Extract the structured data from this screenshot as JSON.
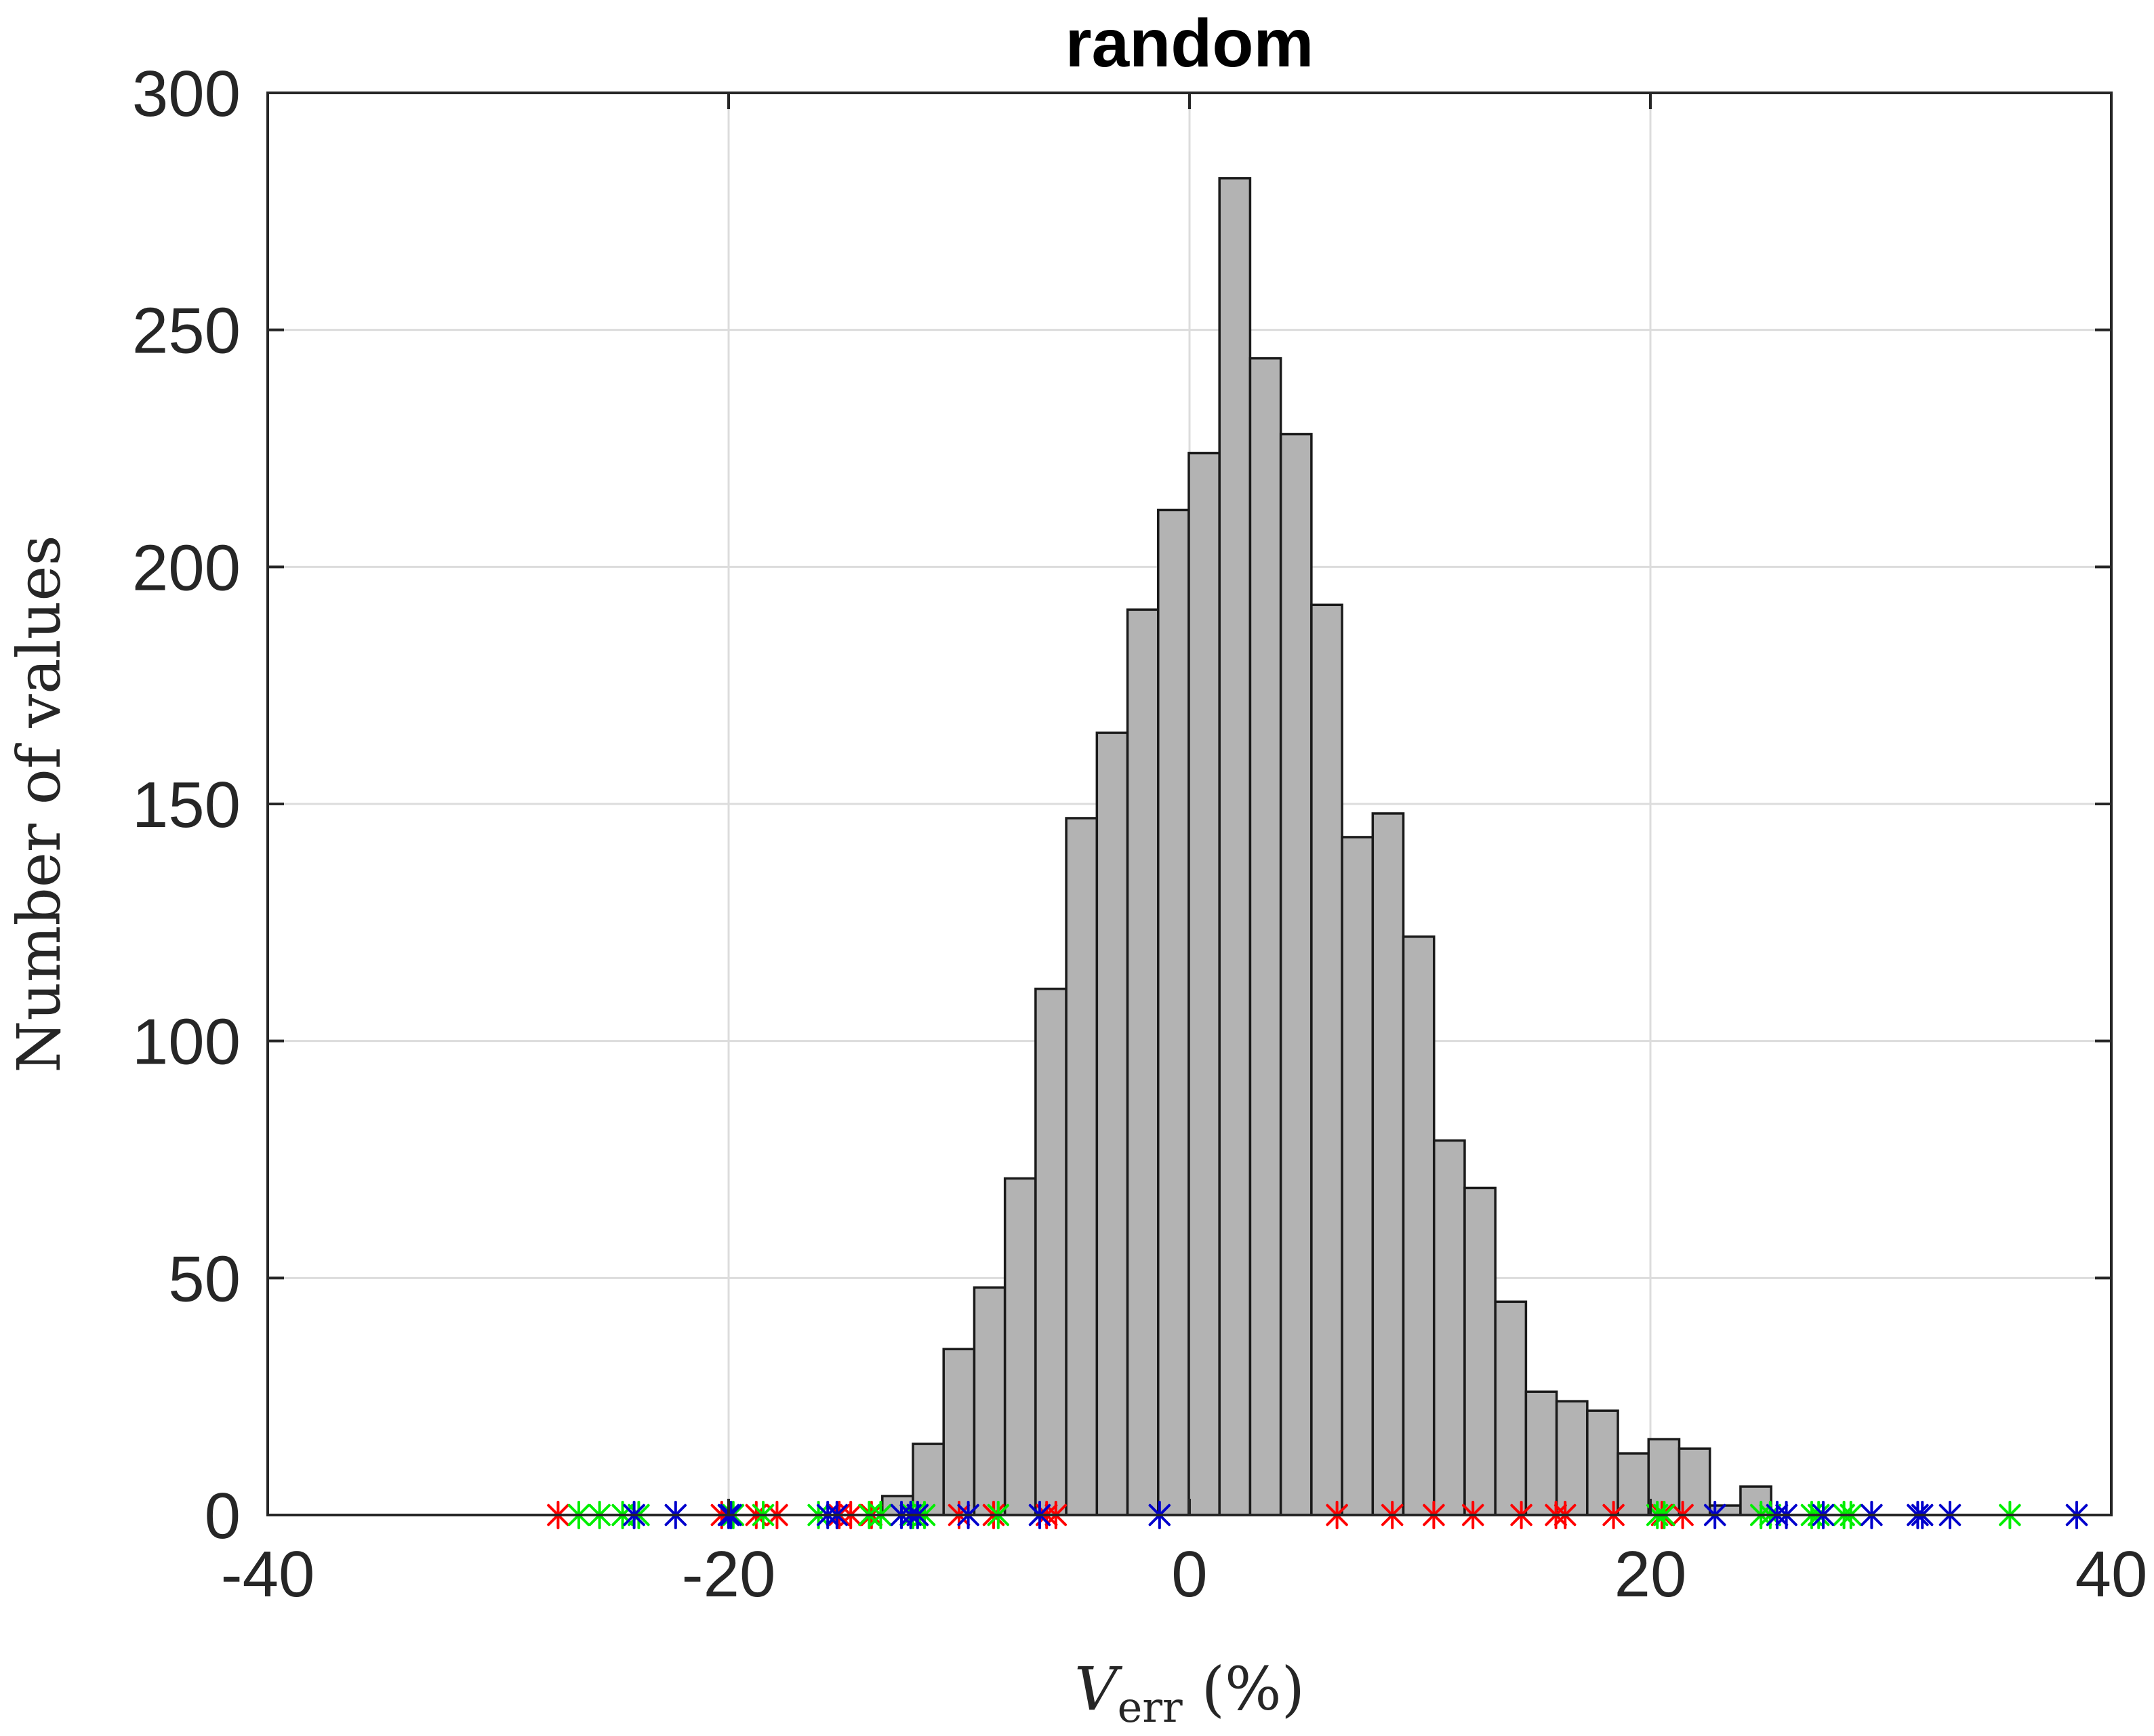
{
  "chart_data": {
    "type": "bar",
    "title": "random",
    "xlabel": "V",
    "xlabel_subscript": "err",
    "xlabel_unit": "(%)",
    "ylabel": "Number of values",
    "xlim": [
      -40,
      40
    ],
    "ylim": [
      0,
      300
    ],
    "xticks": [
      "-40",
      "-20",
      "0",
      "20",
      "40"
    ],
    "yticks": [
      "0",
      "50",
      "100",
      "150",
      "200",
      "250",
      "300"
    ],
    "grid": true,
    "histogram": {
      "bin_width": 1.33,
      "first_bin_start": -13.33,
      "counts": [
        4,
        15,
        35,
        48,
        71,
        111,
        147,
        165,
        191,
        212,
        224,
        282,
        244,
        228,
        192,
        143,
        148,
        122,
        79,
        69,
        45,
        26,
        24,
        22,
        13,
        16,
        14,
        2,
        6
      ],
      "color": "#b3b3b3"
    },
    "markers": [
      {
        "name": "red",
        "color": "#ff0000",
        "x": [
          -27.4,
          -20.3,
          -18.8,
          -17.9,
          -15.2,
          -14.7,
          -13.8,
          -11.8,
          -10.0,
          -8.5,
          -6.2,
          -5.8,
          6.4,
          8.8,
          10.6,
          12.3,
          14.4,
          15.9,
          16.3,
          18.4,
          20.5,
          21.4
        ]
      },
      {
        "name": "green",
        "color": "#00ee00",
        "x": [
          -26.5,
          -25.6,
          -24.6,
          -23.9,
          -19.8,
          -18.5,
          -16.1,
          -13.9,
          -13.4,
          -12.0,
          -11.5,
          -8.3,
          20.3,
          20.6,
          24.8,
          25.2,
          27.0,
          27.3,
          28.4,
          28.7,
          35.6
        ]
      },
      {
        "name": "blue",
        "color": "#0000cc",
        "x": [
          -24.1,
          -22.3,
          -20.0,
          -19.9,
          -15.7,
          -15.3,
          -12.5,
          -12.1,
          -11.8,
          -9.6,
          -6.5,
          -1.3,
          22.8,
          25.5,
          25.9,
          27.5,
          29.6,
          31.6,
          31.8,
          33.0,
          38.5
        ]
      }
    ]
  }
}
